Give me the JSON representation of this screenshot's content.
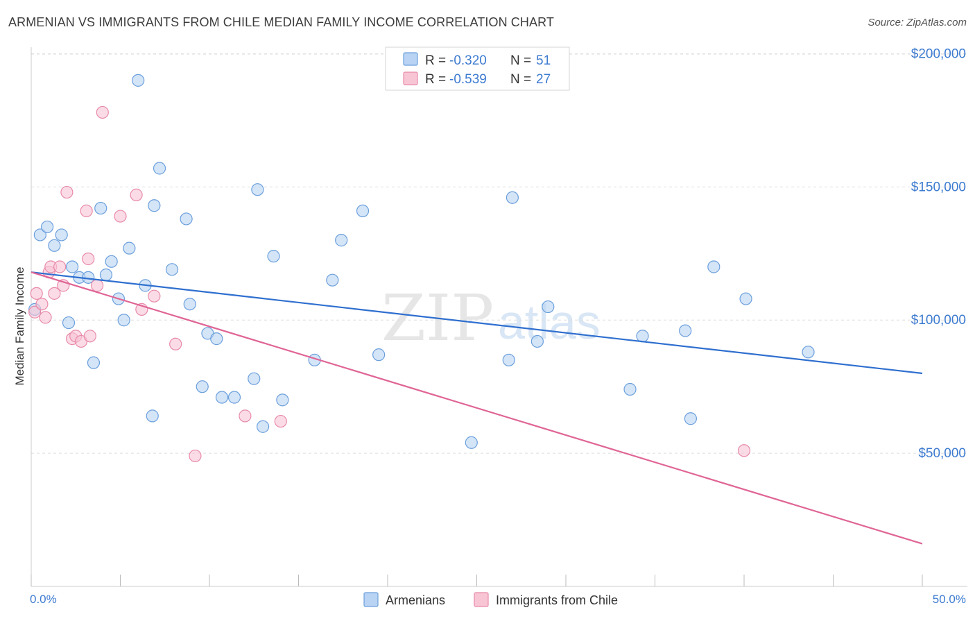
{
  "title": "ARMENIAN VS IMMIGRANTS FROM CHILE MEDIAN FAMILY INCOME CORRELATION CHART",
  "source": "Source: ZipAtlas.com",
  "watermark": {
    "part1": "ZIP",
    "part2": "atlas"
  },
  "legend": {
    "rows": [
      {
        "r_label": "R =",
        "r_value": "-0.320",
        "n_label": "N =",
        "n_value": "51"
      },
      {
        "r_label": "R =",
        "r_value": "-0.539",
        "n_label": "N =",
        "n_value": "27"
      }
    ]
  },
  "colors": {
    "armenians_fill": "#b8d3f3",
    "armenians_stroke": "#6b9fdc",
    "armenians_line": "#2f6fcf",
    "chile_fill": "#f8c5d5",
    "chile_stroke": "#e88aa8",
    "chile_line": "#e06595",
    "grid": "#dddddd",
    "axis_label": "#3d7bd0"
  },
  "chart_data": {
    "type": "scatter",
    "xlabel": "",
    "ylabel": "Median Family Income",
    "x_tick_labels": [
      "0.0%",
      "50.0%"
    ],
    "y_tick_labels": [
      "$50,000",
      "$100,000",
      "$150,000",
      "$200,000"
    ],
    "y_ticks": [
      50000,
      100000,
      150000,
      200000
    ],
    "xlim": [
      0,
      50
    ],
    "ylim": [
      0,
      205000
    ],
    "grid": true,
    "legend_position": "top-center",
    "series": [
      {
        "name": "Armenians",
        "points": [
          [
            0.2,
            104000
          ],
          [
            0.5,
            132000
          ],
          [
            0.9,
            135000
          ],
          [
            1.3,
            128000
          ],
          [
            1.7,
            132000
          ],
          [
            2.1,
            99000
          ],
          [
            2.3,
            120000
          ],
          [
            2.7,
            116000
          ],
          [
            3.2,
            116000
          ],
          [
            3.5,
            84000
          ],
          [
            3.9,
            142000
          ],
          [
            4.2,
            117000
          ],
          [
            4.5,
            122000
          ],
          [
            4.9,
            108000
          ],
          [
            5.2,
            100000
          ],
          [
            5.5,
            127000
          ],
          [
            6.0,
            190000
          ],
          [
            6.4,
            113000
          ],
          [
            6.8,
            64000
          ],
          [
            6.9,
            143000
          ],
          [
            7.2,
            157000
          ],
          [
            7.9,
            119000
          ],
          [
            8.7,
            138000
          ],
          [
            8.9,
            106000
          ],
          [
            9.6,
            75000
          ],
          [
            9.9,
            95000
          ],
          [
            10.4,
            93000
          ],
          [
            10.7,
            71000
          ],
          [
            11.4,
            71000
          ],
          [
            12.5,
            78000
          ],
          [
            12.7,
            149000
          ],
          [
            13.0,
            60000
          ],
          [
            13.6,
            124000
          ],
          [
            14.1,
            70000
          ],
          [
            15.9,
            85000
          ],
          [
            16.9,
            115000
          ],
          [
            17.4,
            130000
          ],
          [
            18.6,
            141000
          ],
          [
            19.5,
            87000
          ],
          [
            24.7,
            54000
          ],
          [
            26.8,
            85000
          ],
          [
            27.0,
            146000
          ],
          [
            28.4,
            92000
          ],
          [
            29.0,
            105000
          ],
          [
            33.6,
            74000
          ],
          [
            34.3,
            94000
          ],
          [
            36.7,
            96000
          ],
          [
            37.0,
            63000
          ],
          [
            38.3,
            120000
          ],
          [
            40.1,
            108000
          ],
          [
            43.6,
            88000
          ]
        ],
        "trend": {
          "x": [
            0,
            50
          ],
          "y": [
            118000,
            80000
          ]
        }
      },
      {
        "name": "Immigrants from Chile",
        "points": [
          [
            0.2,
            103000
          ],
          [
            0.3,
            110000
          ],
          [
            0.6,
            106000
          ],
          [
            0.8,
            101000
          ],
          [
            1.0,
            118000
          ],
          [
            1.1,
            120000
          ],
          [
            1.3,
            110000
          ],
          [
            1.6,
            120000
          ],
          [
            1.8,
            113000
          ],
          [
            2.0,
            148000
          ],
          [
            2.3,
            93000
          ],
          [
            2.5,
            94000
          ],
          [
            2.8,
            92000
          ],
          [
            3.1,
            141000
          ],
          [
            3.2,
            123000
          ],
          [
            3.3,
            94000
          ],
          [
            3.7,
            113000
          ],
          [
            4.0,
            178000
          ],
          [
            5.0,
            139000
          ],
          [
            5.9,
            147000
          ],
          [
            6.2,
            104000
          ],
          [
            6.9,
            109000
          ],
          [
            8.1,
            91000
          ],
          [
            9.2,
            49000
          ],
          [
            12.0,
            64000
          ],
          [
            14.0,
            62000
          ],
          [
            40.0,
            51000
          ]
        ],
        "trend": {
          "x": [
            0,
            50
          ],
          "y": [
            118000,
            16000
          ]
        }
      }
    ]
  }
}
